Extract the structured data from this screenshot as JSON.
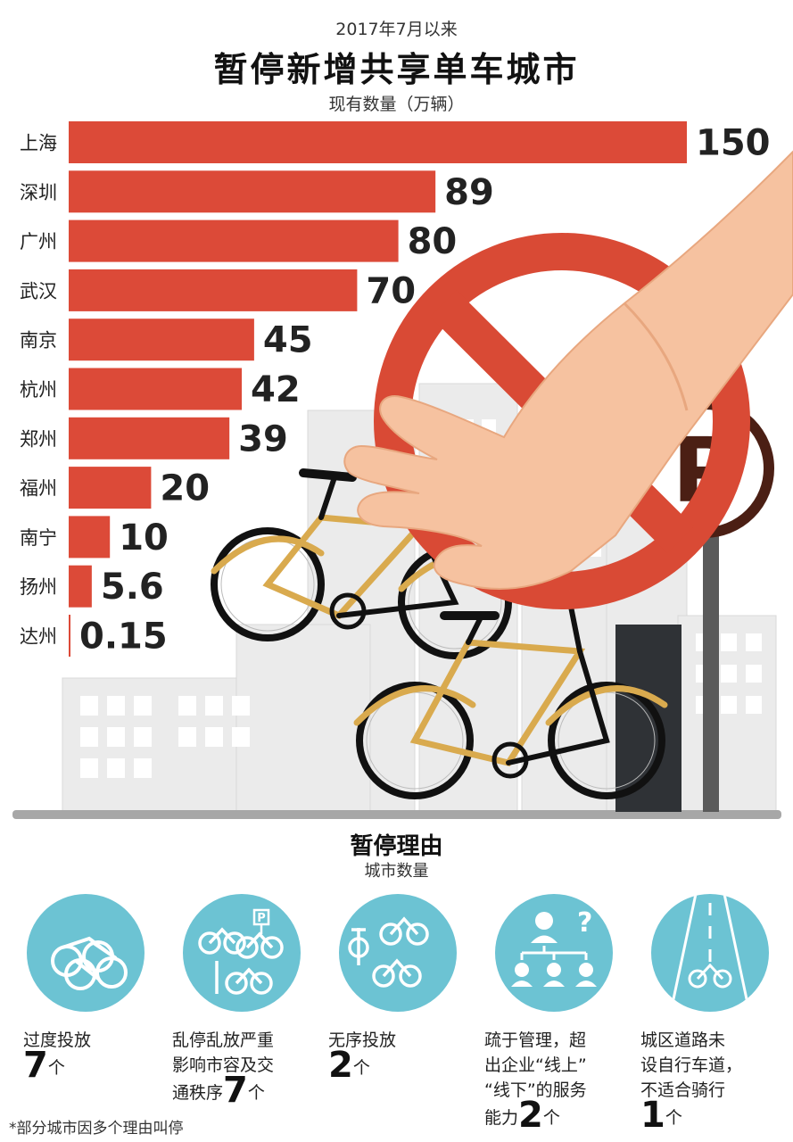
{
  "header": {
    "subtitle": "2017年7月以来",
    "title": "暂停新增共享单车城市",
    "unit_caption": "现有数量（万辆）"
  },
  "chart_data": {
    "type": "bar",
    "orientation": "horizontal",
    "title": "暂停新增共享单车城市",
    "subtitle": "2017年7月以来",
    "ylabel": "现有数量（万辆）",
    "categories": [
      "上海",
      "深圳",
      "广州",
      "武汉",
      "南京",
      "杭州",
      "郑州",
      "福州",
      "南宁",
      "扬州",
      "达州"
    ],
    "values": [
      150,
      89,
      80,
      70,
      45,
      42,
      39,
      20,
      10,
      5.6,
      0.15
    ],
    "value_labels": [
      "150",
      "89",
      "80",
      "70",
      "45",
      "42",
      "39",
      "20",
      "10",
      "5.6",
      "0.15"
    ],
    "bar_color": "#dc4a38",
    "xlim": [
      0,
      150
    ],
    "grid": false,
    "legend": "none"
  },
  "reasons": {
    "title": "暂停理由",
    "subtitle": "城市数量",
    "items": [
      {
        "lines": [
          "过度投放"
        ],
        "prefix": "",
        "count": "7",
        "unit": "个",
        "icon": "bike-pile-icon"
      },
      {
        "lines": [
          "乱停乱放严重",
          "影响市容及交"
        ],
        "prefix": "通秩序",
        "count": "7",
        "unit": "个",
        "icon": "scattered-bikes-parking-icon"
      },
      {
        "lines": [
          "无序投放"
        ],
        "prefix": "",
        "count": "2",
        "unit": "个",
        "icon": "disordered-bikes-icon"
      },
      {
        "lines": [
          "疏于管理，超",
          "出企业“线上”",
          "“线下”的服务"
        ],
        "prefix": "能力",
        "count": "2",
        "unit": "个",
        "icon": "management-hierarchy-icon"
      },
      {
        "lines": [
          "城区道路未",
          "设自行车道，",
          "不适合骑行"
        ],
        "prefix": "",
        "count": "1",
        "unit": "个",
        "icon": "no-bike-lane-road-icon"
      }
    ]
  },
  "illustration": {
    "parking_sign_letter": "P",
    "small_sign_letter": "P"
  },
  "footnote": "*部分城市因多个理由叫停",
  "colors": {
    "bar": "#dc4a38",
    "prohibition": "#d94a35",
    "skin": "#f6c2a0",
    "teal": "#6cc3d3",
    "bike_gold": "#d9aa4e",
    "building": "#ebebeb",
    "ground": "#a7a7a7"
  }
}
